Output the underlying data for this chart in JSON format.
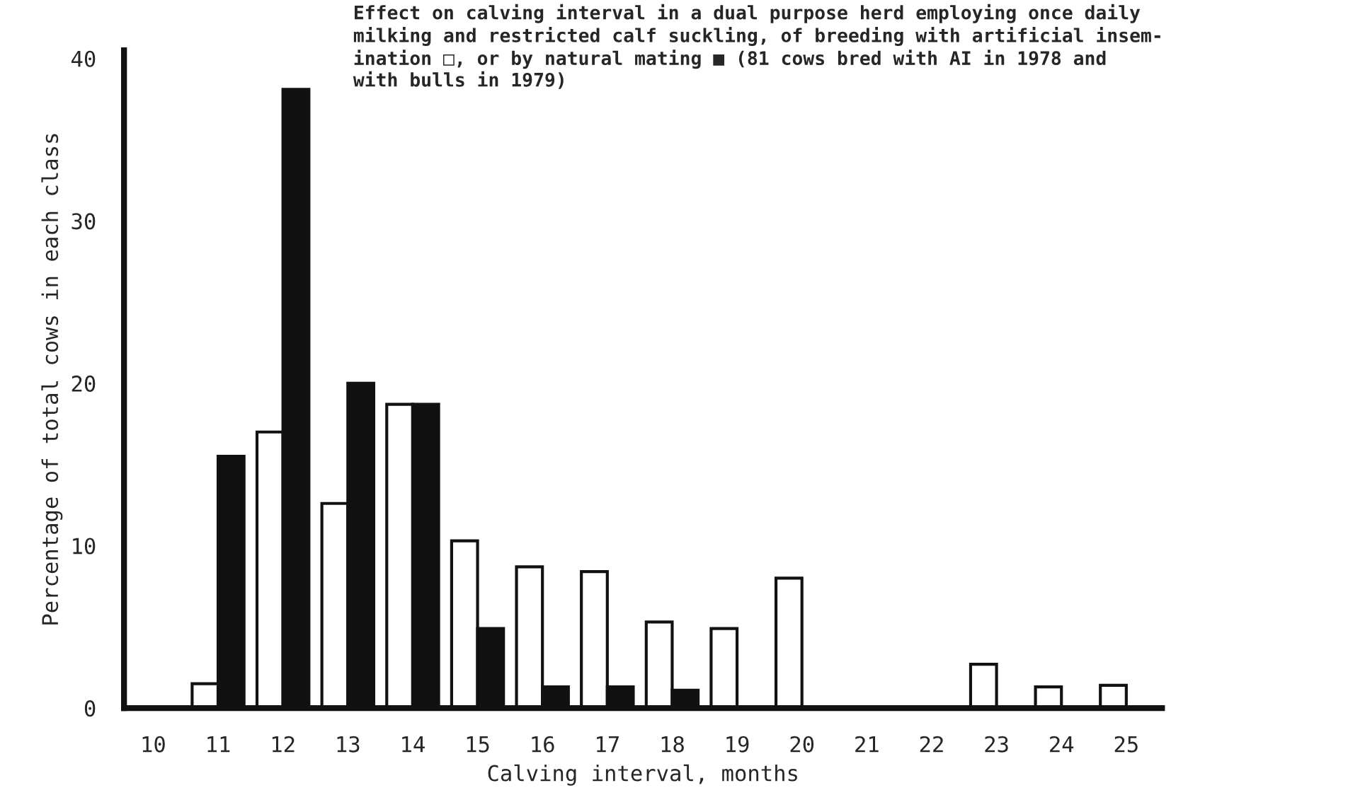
{
  "chart_data": {
    "type": "bar",
    "title": "Effect on calving interval in a dual purpose herd employing once daily\nmilking and restricted calf suckling, of breeding with artificial insem-\nination □, or by natural mating ■ (81 cows bred with AI in 1978 and\nwith bulls in 1979)",
    "xlabel": "Calving interval, months",
    "ylabel": "Percentage of total cows in each class",
    "categories": [
      "10",
      "11",
      "12",
      "13",
      "14",
      "15",
      "16",
      "17",
      "18",
      "19",
      "20",
      "21",
      "22",
      "23",
      "24",
      "25"
    ],
    "series": [
      {
        "color": "#ffffff",
        "values": [
          null,
          1.5,
          17.0,
          12.6,
          18.7,
          10.3,
          8.7,
          8.4,
          5.3,
          4.9,
          8.0,
          null,
          null,
          2.7,
          1.3,
          1.4
        ]
      },
      {
        "color": "#111111",
        "values": [
          null,
          15.5,
          38.1,
          20.0,
          18.7,
          4.9,
          1.3,
          1.3,
          1.1,
          null,
          null,
          null,
          null,
          null,
          null,
          null
        ]
      }
    ],
    "ylim": [
      0,
      40.5
    ],
    "yticks": [
      0,
      10,
      20,
      30,
      40
    ],
    "grid": false,
    "legend": false
  }
}
